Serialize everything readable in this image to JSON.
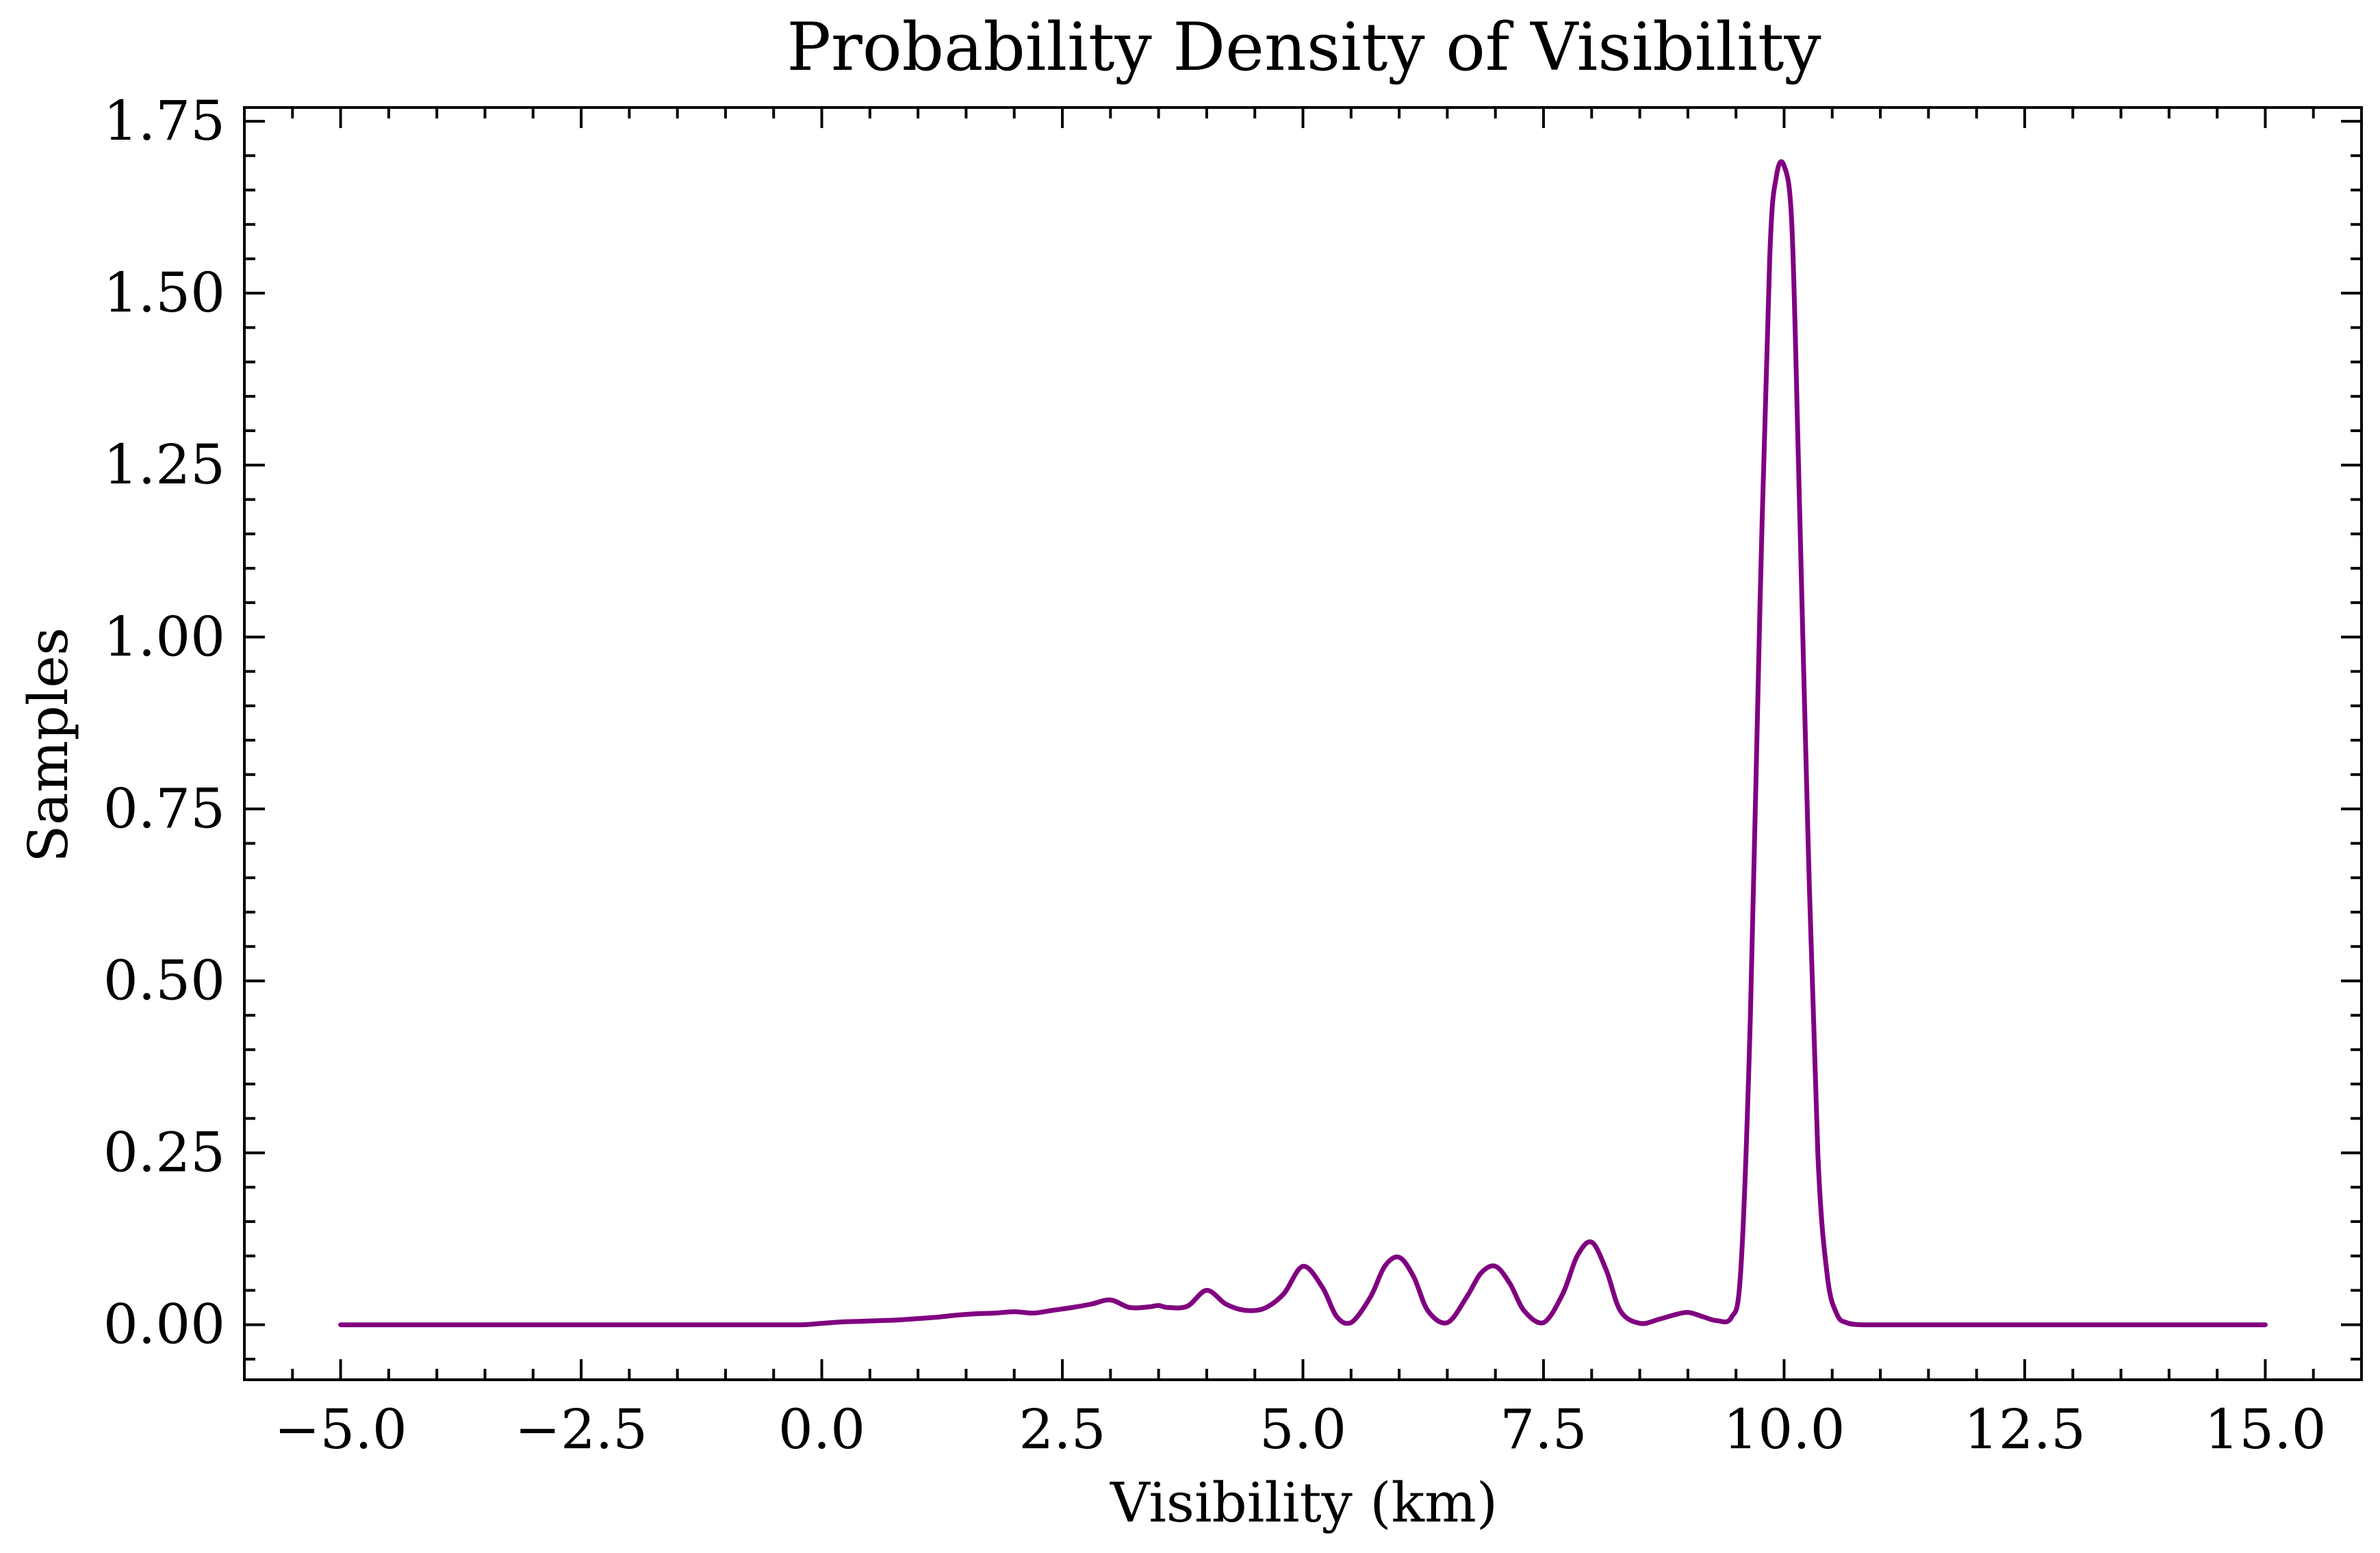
{
  "chart_data": {
    "type": "line",
    "title": "Probability Density of Visibility",
    "xlabel": "Visibility (km)",
    "ylabel": "Samples",
    "xlim": [
      -6.0,
      16.0
    ],
    "ylim": [
      -0.08,
      1.77
    ],
    "xticks": [
      -5.0,
      -2.5,
      0.0,
      2.5,
      5.0,
      7.5,
      10.0,
      12.5,
      15.0
    ],
    "xtick_labels": [
      "−5.0",
      "−2.5",
      "0.0",
      "2.5",
      "5.0",
      "7.5",
      "10.0",
      "12.5",
      "15.0"
    ],
    "yticks": [
      0.0,
      0.25,
      0.5,
      0.75,
      1.0,
      1.25,
      1.5,
      1.75
    ],
    "ytick_labels": [
      "0.00",
      "0.25",
      "0.50",
      "0.75",
      "1.00",
      "1.25",
      "1.50",
      "1.75"
    ],
    "grid": false,
    "series": [
      {
        "color": "#800080",
        "x": [
          -5.0,
          -4.0,
          -3.0,
          -2.0,
          -1.0,
          -0.5,
          -0.2,
          0.0,
          0.2,
          0.4,
          0.6,
          0.8,
          1.0,
          1.2,
          1.4,
          1.6,
          1.8,
          2.0,
          2.2,
          2.4,
          2.6,
          2.8,
          3.0,
          3.2,
          3.4,
          3.5,
          3.6,
          3.8,
          4.0,
          4.2,
          4.4,
          4.6,
          4.8,
          5.0,
          5.2,
          5.35,
          5.5,
          5.7,
          5.85,
          6.0,
          6.15,
          6.3,
          6.5,
          6.7,
          6.85,
          7.0,
          7.15,
          7.3,
          7.5,
          7.7,
          7.85,
          8.0,
          8.15,
          8.3,
          8.5,
          8.7,
          8.85,
          9.0,
          9.15,
          9.3,
          9.45,
          9.55,
          9.65,
          9.75,
          9.85,
          9.92,
          10.0,
          10.08,
          10.15,
          10.25,
          10.35,
          10.45,
          10.55,
          10.65,
          10.8,
          11.0,
          12.0,
          13.0,
          14.0,
          15.0
        ],
        "y": [
          0.0,
          0.0,
          0.0,
          0.0,
          0.0,
          0.0,
          0.0,
          0.002,
          0.004,
          0.005,
          0.006,
          0.007,
          0.009,
          0.011,
          0.014,
          0.016,
          0.017,
          0.019,
          0.017,
          0.021,
          0.025,
          0.03,
          0.036,
          0.025,
          0.026,
          0.028,
          0.025,
          0.027,
          0.05,
          0.03,
          0.021,
          0.024,
          0.045,
          0.085,
          0.055,
          0.012,
          0.003,
          0.04,
          0.085,
          0.098,
          0.07,
          0.02,
          0.003,
          0.04,
          0.075,
          0.085,
          0.06,
          0.02,
          0.003,
          0.045,
          0.1,
          0.12,
          0.08,
          0.02,
          0.002,
          0.008,
          0.014,
          0.018,
          0.012,
          0.006,
          0.01,
          0.08,
          0.45,
          1.05,
          1.55,
          1.67,
          1.685,
          1.6,
          1.25,
          0.7,
          0.25,
          0.07,
          0.015,
          0.003,
          0.0,
          0.0,
          0.0,
          0.0,
          0.0,
          0.0
        ]
      }
    ]
  }
}
